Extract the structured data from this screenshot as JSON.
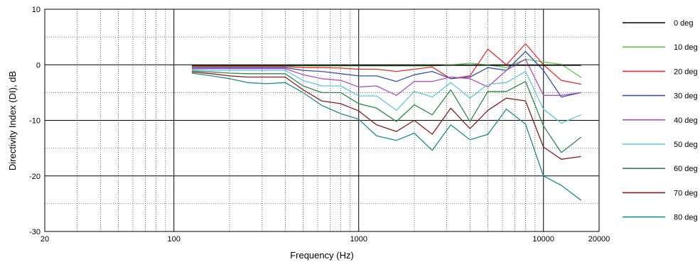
{
  "chart_data": {
    "type": "line",
    "xlabel": "Frequency (Hz)",
    "ylabel": "Directivity Index (DI), dB",
    "xscale": "log",
    "xlim": [
      20,
      20000
    ],
    "ylim": [
      -30,
      10
    ],
    "x_ticks": [
      20,
      100,
      1000,
      10000,
      20000
    ],
    "x_tick_labels": [
      "20",
      "100",
      "1000",
      "10000",
      "20000"
    ],
    "y_ticks": [
      -30,
      -20,
      -10,
      0,
      10
    ],
    "y_tick_labels": [
      "-30",
      "-20",
      "-10",
      "0",
      "10"
    ],
    "grid": true,
    "legend_position": "right",
    "x": [
      125,
      160,
      200,
      250,
      315,
      400,
      500,
      630,
      800,
      1000,
      1250,
      1600,
      2000,
      2500,
      3150,
      4000,
      5000,
      6300,
      8000,
      10000,
      12500,
      16000
    ],
    "series": [
      {
        "name": "0 deg",
        "color": "#000000",
        "values": [
          -0.1,
          -0.1,
          -0.1,
          -0.1,
          -0.1,
          -0.1,
          -0.1,
          -0.1,
          -0.1,
          -0.1,
          -0.1,
          -0.1,
          -0.1,
          -0.1,
          -0.1,
          -0.1,
          -0.1,
          -0.1,
          -0.1,
          -0.1,
          -0.1,
          -0.1
        ]
      },
      {
        "name": "10 deg",
        "color": "#5cc84a",
        "values": [
          -0.2,
          -0.2,
          -0.2,
          -0.2,
          -0.2,
          -0.2,
          -0.2,
          -0.2,
          -0.2,
          -0.2,
          -0.2,
          -0.2,
          -0.2,
          -0.2,
          0.0,
          0.3,
          0.0,
          -0.5,
          1.0,
          0.5,
          0.1,
          -2.3
        ]
      },
      {
        "name": "20 deg",
        "color": "#ee2a2a",
        "values": [
          -0.3,
          -0.3,
          -0.3,
          -0.3,
          -0.3,
          -0.3,
          -0.5,
          -0.5,
          -0.6,
          -0.8,
          -0.8,
          -1.2,
          -0.8,
          -0.4,
          -2.5,
          -2.0,
          2.8,
          0.0,
          3.8,
          0.0,
          -2.8,
          -3.5
        ]
      },
      {
        "name": "30 deg",
        "color": "#3550b0",
        "values": [
          -0.5,
          -0.5,
          -0.5,
          -0.5,
          -0.5,
          -0.5,
          -1.0,
          -1.2,
          -1.6,
          -2.0,
          -2.0,
          -3.0,
          -1.8,
          -1.2,
          -2.5,
          -2.2,
          -0.5,
          -1.0,
          2.4,
          -1.0,
          -5.8,
          -5.0
        ]
      },
      {
        "name": "40 deg",
        "color": "#b04fc0",
        "values": [
          -0.7,
          -0.7,
          -0.7,
          -0.7,
          -0.7,
          -0.7,
          -1.8,
          -2.5,
          -2.8,
          -4.0,
          -3.8,
          -5.5,
          -3.0,
          -3.0,
          -2.2,
          -2.5,
          -4.0,
          -1.0,
          1.0,
          -5.5,
          -5.5,
          -5.0
        ]
      },
      {
        "name": "50 deg",
        "color": "#5ec8dc",
        "values": [
          -0.9,
          -1.0,
          -1.0,
          -1.0,
          -1.0,
          -1.0,
          -2.8,
          -3.8,
          -3.8,
          -5.6,
          -5.6,
          -8.2,
          -4.8,
          -5.8,
          -3.2,
          -6.0,
          -3.5,
          -3.2,
          -1.2,
          -8.0,
          -10.5,
          -9.0
        ]
      },
      {
        "name": "60 deg",
        "color": "#2a8a4a",
        "values": [
          -1.1,
          -1.3,
          -1.5,
          -1.6,
          -1.6,
          -1.6,
          -3.8,
          -5.0,
          -5.0,
          -7.0,
          -7.8,
          -10.2,
          -7.2,
          -9.0,
          -4.5,
          -10.2,
          -4.8,
          -4.8,
          -3.0,
          -11.0,
          -15.8,
          -13.0
        ]
      },
      {
        "name": "70 deg",
        "color": "#8b1a1a",
        "values": [
          -1.3,
          -1.6,
          -2.0,
          -2.2,
          -2.2,
          -2.2,
          -4.5,
          -6.5,
          -7.0,
          -8.3,
          -10.8,
          -12.0,
          -10.0,
          -12.5,
          -7.8,
          -11.5,
          -8.2,
          -6.0,
          -6.5,
          -14.8,
          -17.0,
          -16.5
        ]
      },
      {
        "name": "80 deg",
        "color": "#1e8a8e",
        "values": [
          -1.5,
          -2.0,
          -2.5,
          -3.2,
          -3.4,
          -3.2,
          -5.0,
          -7.3,
          -8.8,
          -9.8,
          -12.8,
          -13.6,
          -12.3,
          -15.4,
          -10.8,
          -13.5,
          -12.5,
          -8.0,
          -10.7,
          -20.0,
          -21.7,
          -24.4
        ]
      }
    ]
  }
}
